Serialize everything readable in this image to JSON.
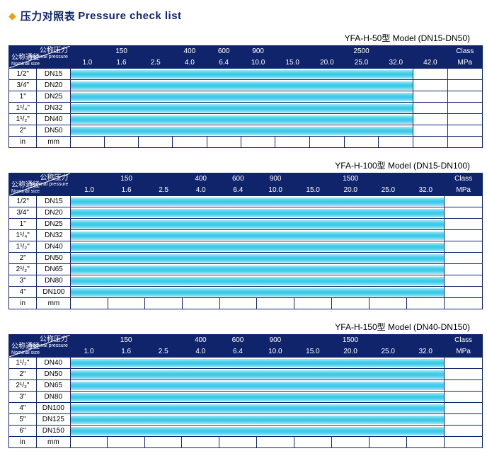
{
  "title_cn": "压力对照表",
  "title_en": "Pressure check list",
  "header_labels": {
    "nominal_pressure_cn": "公称压力",
    "nominal_pressure_en": "Nominal pressure",
    "nominal_size_cn": "公称通径",
    "nominal_size_en": "Nominal size",
    "class": "Class",
    "mpa": "MPa",
    "in": "in",
    "mm": "mm"
  },
  "colors": {
    "header_bg": "#10246c",
    "header_text": "#ffffff",
    "border": "#10246c",
    "diamond": "#e8a020",
    "band_light": "#9fe6f4",
    "band_dark": "#3ccbe8",
    "page_bg": "#ffffff"
  },
  "tables": [
    {
      "caption": "YFA-H-50型  Model (DN15-DN50)",
      "class_cells": [
        "",
        "150",
        "",
        "400",
        "600",
        "900",
        "",
        "",
        "2500"
      ],
      "mpa_cells": [
        "1.0",
        "1.6",
        "2.5",
        "4.0",
        "6.4",
        "10.0",
        "15.0",
        "20.0",
        "25.0",
        "32.0",
        "42.0"
      ],
      "col_count": 11,
      "rows": [
        {
          "in": "1/2\"",
          "mm": "DN15",
          "fill": 10
        },
        {
          "in": "3/4\"",
          "mm": "DN20",
          "fill": 10
        },
        {
          "in": "1\"",
          "mm": "DN25",
          "fill": 10
        },
        {
          "in": "1¹/₄\"",
          "mm": "DN32",
          "fill": 10
        },
        {
          "in": "1¹/₂\"",
          "mm": "DN40",
          "fill": 10
        },
        {
          "in": "2\"",
          "mm": "DN50",
          "fill": 10
        }
      ]
    },
    {
      "caption": "YFA-H-100型  Model (DN15-DN100)",
      "class_cells": [
        "",
        "150",
        "",
        "400",
        "600",
        "900",
        "",
        "1500",
        ""
      ],
      "mpa_cells": [
        "1.0",
        "1.6",
        "2.5",
        "4.0",
        "6.4",
        "10.0",
        "15.0",
        "20.0",
        "25.0",
        "32.0"
      ],
      "col_count": 10,
      "rows": [
        {
          "in": "1/2\"",
          "mm": "DN15",
          "fill": 10
        },
        {
          "in": "3/4\"",
          "mm": "DN20",
          "fill": 10
        },
        {
          "in": "1\"",
          "mm": "DN25",
          "fill": 10
        },
        {
          "in": "1¹/₄\"",
          "mm": "DN32",
          "fill": 10
        },
        {
          "in": "1¹/₂\"",
          "mm": "DN40",
          "fill": 10
        },
        {
          "in": "2\"",
          "mm": "DN50",
          "fill": 10
        },
        {
          "in": "2¹/₂\"",
          "mm": "DN65",
          "fill": 10
        },
        {
          "in": "3\"",
          "mm": "DN80",
          "fill": 10
        },
        {
          "in": "4\"",
          "mm": "DN100",
          "fill": 10
        }
      ]
    },
    {
      "caption": "YFA-H-150型  Model (DN40-DN150)",
      "class_cells": [
        "",
        "150",
        "",
        "400",
        "600",
        "900",
        "",
        "1500",
        ""
      ],
      "mpa_cells": [
        "1.0",
        "1.6",
        "2.5",
        "4.0",
        "6.4",
        "10.0",
        "15.0",
        "20.0",
        "25.0",
        "32.0"
      ],
      "col_count": 10,
      "rows": [
        {
          "in": "1¹/₂\"",
          "mm": "DN40",
          "fill": 10
        },
        {
          "in": "2\"",
          "mm": "DN50",
          "fill": 10
        },
        {
          "in": "2¹/₂\"",
          "mm": "DN65",
          "fill": 10
        },
        {
          "in": "3\"",
          "mm": "DN80",
          "fill": 10
        },
        {
          "in": "4\"",
          "mm": "DN100",
          "fill": 10
        },
        {
          "in": "5\"",
          "mm": "DN125",
          "fill": 10
        },
        {
          "in": "6\"",
          "mm": "DN150",
          "fill": 10
        }
      ]
    }
  ]
}
